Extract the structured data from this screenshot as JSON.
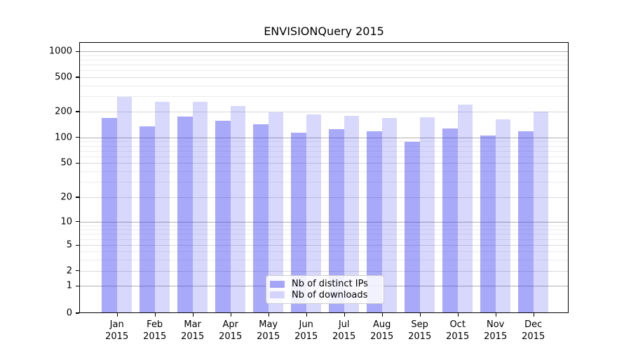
{
  "chart_data": {
    "type": "bar",
    "title": "ENVISIONQuery 2015",
    "categories": [
      "Jan",
      "Feb",
      "Mar",
      "Apr",
      "May",
      "Jun",
      "Jul",
      "Aug",
      "Sep",
      "Oct",
      "Nov",
      "Dec"
    ],
    "category_sub_label": "2015",
    "series": [
      {
        "name": "Nb of distinct IPs",
        "color": "rgba(50,50,240,0.42)",
        "values": [
          170,
          135,
          176,
          158,
          142,
          113,
          124,
          117,
          88,
          127,
          105,
          118
        ]
      },
      {
        "name": "Nb of downloads",
        "color": "rgba(50,50,240,0.19)",
        "values": [
          298,
          262,
          258,
          232,
          196,
          186,
          180,
          170,
          172,
          240,
          163,
          201
        ]
      }
    ],
    "y_axis": {
      "scale": "log-with-zero",
      "ticks": [
        0,
        1,
        2,
        5,
        10,
        20,
        50,
        100,
        200,
        500,
        1000
      ],
      "minor_gridlines": [
        3,
        4,
        6,
        7,
        8,
        9,
        30,
        40,
        60,
        70,
        80,
        90,
        300,
        400,
        600,
        700,
        800,
        900
      ],
      "range": [
        0,
        1000
      ]
    },
    "x_axis": {
      "year": "2015"
    },
    "legend": {
      "position": "inside-bottom-center"
    },
    "grid": {
      "horizontal": true,
      "vertical": false
    },
    "colors": {
      "gridline_power10": "#b0b0b0",
      "gridline_major": "#d9d9d9",
      "gridline_minor": "#ececec",
      "axis": "#000000",
      "background": "#ffffff"
    }
  }
}
